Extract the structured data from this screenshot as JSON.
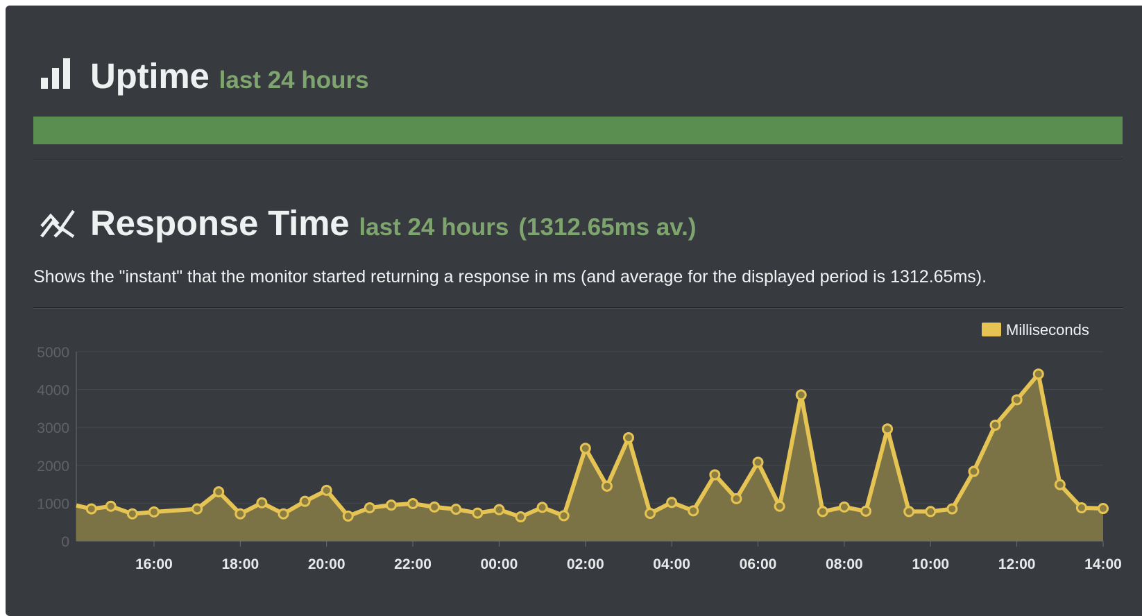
{
  "uptime": {
    "title": "Uptime",
    "subtitle": "last 24 hours",
    "bar_color": "#5a8e50",
    "icon": "bar-chart-icon"
  },
  "response_time": {
    "title": "Response Time",
    "subtitle": "last 24 hours",
    "average": "(1312.65ms av.)",
    "description": "Shows the \"instant\" that the monitor started returning a response in ms (and average for the displayed period is 1312.65ms).",
    "icon": "line-chart-icon"
  },
  "chart_data": {
    "type": "area",
    "legend": {
      "label": "Milliseconds",
      "position": "top-right",
      "color": "#e6c453"
    },
    "grid": true,
    "xlim": [
      14.2,
      38.0
    ],
    "ylim": [
      0,
      5000
    ],
    "yticks": [
      0,
      1000,
      2000,
      3000,
      4000,
      5000
    ],
    "xticks": [
      {
        "value": 16,
        "label": "16:00"
      },
      {
        "value": 18,
        "label": "18:00"
      },
      {
        "value": 20,
        "label": "20:00"
      },
      {
        "value": 22,
        "label": "22:00"
      },
      {
        "value": 24,
        "label": "00:00"
      },
      {
        "value": 26,
        "label": "02:00"
      },
      {
        "value": 28,
        "label": "04:00"
      },
      {
        "value": 30,
        "label": "06:00"
      },
      {
        "value": 32,
        "label": "08:00"
      },
      {
        "value": 34,
        "label": "10:00"
      },
      {
        "value": 36,
        "label": "12:00"
      },
      {
        "value": 38,
        "label": "14:00"
      }
    ],
    "series": [
      {
        "name": "Milliseconds",
        "x": [
          14.2,
          14.55,
          15,
          15.5,
          16,
          17,
          17.5,
          18,
          18.5,
          19,
          19.5,
          20,
          20.5,
          21,
          21.5,
          22,
          22.5,
          23,
          23.5,
          24,
          24.5,
          25,
          25.5,
          26,
          26.5,
          27,
          27.5,
          28,
          28.5,
          29,
          29.5,
          30,
          30.5,
          31,
          31.5,
          32,
          32.5,
          33,
          33.5,
          34,
          34.5,
          35,
          35.5,
          36,
          36.5,
          37,
          37.5,
          38
        ],
        "values": [
          940,
          850,
          920,
          720,
          770,
          850,
          1300,
          720,
          1010,
          720,
          1050,
          1340,
          660,
          880,
          950,
          990,
          900,
          840,
          740,
          830,
          640,
          890,
          670,
          2450,
          1450,
          2730,
          730,
          1020,
          800,
          1750,
          1120,
          2080,
          920,
          3860,
          780,
          900,
          790,
          2960,
          780,
          780,
          850,
          1840,
          3060,
          3730,
          4410,
          1490,
          880,
          860
        ]
      }
    ]
  }
}
